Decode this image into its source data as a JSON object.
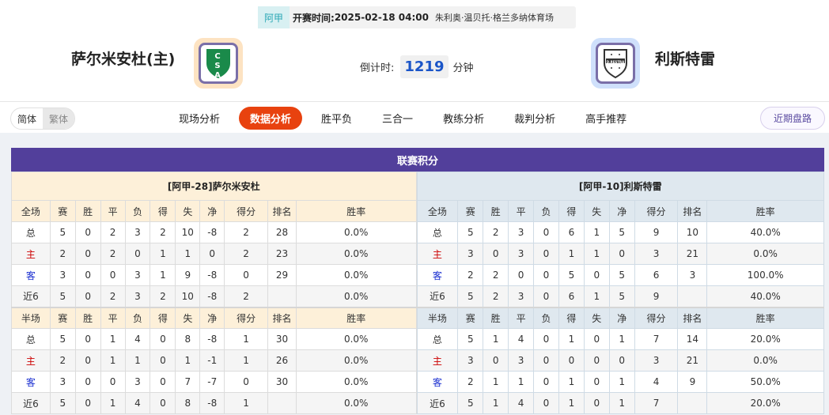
{
  "match": {
    "league": "阿甲",
    "kickoff_label": "开赛时间:",
    "kickoff_time": "2025-02-18 04:00",
    "venue": "朱利奥·温贝托·格兰多纳体育场"
  },
  "home": {
    "name": "萨尔米安杜(主)",
    "crest_letters": "CSA",
    "crest_color": "#1a8a4a"
  },
  "away": {
    "name": "利斯特雷",
    "crest_letters": "D.RESTRA"
  },
  "countdown": {
    "label": "倒计时:",
    "value": "1219",
    "unit": "分钟"
  },
  "lang": {
    "simplified": "简体",
    "traditional": "繁体"
  },
  "tabs": [
    {
      "label": "现场分析"
    },
    {
      "label": "数据分析",
      "active": true
    },
    {
      "label": "胜平负"
    },
    {
      "label": "三合一"
    },
    {
      "label": "教练分析"
    },
    {
      "label": "裁判分析"
    },
    {
      "label": "高手推荐"
    }
  ],
  "recent_button": "近期盘路",
  "colors": {
    "accent": "#e8420f",
    "title_bar": "#523f9b",
    "home_label": "#cc0000",
    "away_label": "#1a2fd0"
  },
  "standings": {
    "title": "联赛积分",
    "columns_full": [
      "全场",
      "赛",
      "胜",
      "平",
      "负",
      "得",
      "失",
      "净",
      "得分",
      "排名",
      "胜率"
    ],
    "columns_half": [
      "半场",
      "赛",
      "胜",
      "平",
      "负",
      "得",
      "失",
      "净",
      "得分",
      "排名",
      "胜率"
    ],
    "teams": [
      {
        "header": "[阿甲-28]萨尔米安杜",
        "full": [
          [
            "总",
            "5",
            "0",
            "2",
            "3",
            "2",
            "10",
            "-8",
            "2",
            "28",
            "0.0%"
          ],
          [
            "主",
            "2",
            "0",
            "2",
            "0",
            "1",
            "1",
            "0",
            "2",
            "23",
            "0.0%"
          ],
          [
            "客",
            "3",
            "0",
            "0",
            "3",
            "1",
            "9",
            "-8",
            "0",
            "29",
            "0.0%"
          ],
          [
            "近6",
            "5",
            "0",
            "2",
            "3",
            "2",
            "10",
            "-8",
            "2",
            "",
            "0.0%"
          ]
        ],
        "half": [
          [
            "总",
            "5",
            "0",
            "1",
            "4",
            "0",
            "8",
            "-8",
            "1",
            "30",
            "0.0%"
          ],
          [
            "主",
            "2",
            "0",
            "1",
            "1",
            "0",
            "1",
            "-1",
            "1",
            "26",
            "0.0%"
          ],
          [
            "客",
            "3",
            "0",
            "0",
            "3",
            "0",
            "7",
            "-7",
            "0",
            "30",
            "0.0%"
          ],
          [
            "近6",
            "5",
            "0",
            "1",
            "4",
            "0",
            "8",
            "-8",
            "1",
            "",
            "0.0%"
          ]
        ]
      },
      {
        "header": "[阿甲-10]利斯特雷",
        "full": [
          [
            "总",
            "5",
            "2",
            "3",
            "0",
            "6",
            "1",
            "5",
            "9",
            "10",
            "40.0%"
          ],
          [
            "主",
            "3",
            "0",
            "3",
            "0",
            "1",
            "1",
            "0",
            "3",
            "21",
            "0.0%"
          ],
          [
            "客",
            "2",
            "2",
            "0",
            "0",
            "5",
            "0",
            "5",
            "6",
            "3",
            "100.0%"
          ],
          [
            "近6",
            "5",
            "2",
            "3",
            "0",
            "6",
            "1",
            "5",
            "9",
            "",
            "40.0%"
          ]
        ],
        "half": [
          [
            "总",
            "5",
            "1",
            "4",
            "0",
            "1",
            "0",
            "1",
            "7",
            "14",
            "20.0%"
          ],
          [
            "主",
            "3",
            "0",
            "3",
            "0",
            "0",
            "0",
            "0",
            "3",
            "21",
            "0.0%"
          ],
          [
            "客",
            "2",
            "1",
            "1",
            "0",
            "1",
            "0",
            "1",
            "4",
            "9",
            "50.0%"
          ],
          [
            "近6",
            "5",
            "1",
            "4",
            "0",
            "1",
            "0",
            "1",
            "7",
            "",
            "20.0%"
          ]
        ]
      }
    ]
  }
}
